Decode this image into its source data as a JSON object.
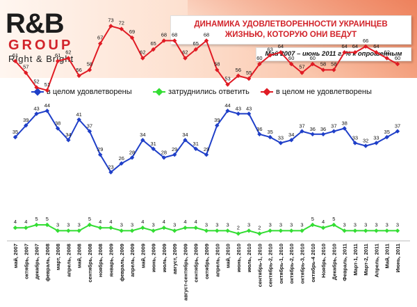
{
  "header": {
    "logo_main": "R&B",
    "logo_group": "GROUP",
    "logo_tagline": "Right & Bright",
    "title_line1": "ДИНАМИКА УДОВЛЕТВОРЕННОСТИ УКРАИНЦЕВ",
    "title_line2": "ЖИЗНЬЮ, КОТОРУЮ ОНИ ВЕДУТ",
    "subtitle": "Май 2007 – июнь 2011 г. % к опрошенным"
  },
  "colors": {
    "satisfied": "#1f3fc8",
    "undecided": "#33dd33",
    "unsatisfied": "#e01b24",
    "accent": "#d2232a"
  },
  "chart_data": {
    "type": "line",
    "title": "ДИНАМИКА УДОВЛЕТВОРЕННОСТИ УКРАИНЦЕВ ЖИЗНЬЮ, КОТОРУЮ ОНИ ВЕДУТ",
    "subtitle": "Май 2007 – июнь 2011 г. % к опрошенным",
    "legend_position": "top",
    "grid": false,
    "categories": [
      "май, 2007",
      "октябрь, 2007",
      "декабрь, 2007",
      "февраль, 2008",
      "март, 2008",
      "апрель, 2008",
      "май, 2008",
      "сентябрь, 2008",
      "ноябрь, 2008",
      "январь, 2009",
      "февраль, 2009",
      "апрель, 2009",
      "май, 2009",
      "июнь, 2009",
      "июль, 2009",
      "август, 2009",
      "август-сентябрь, 2009",
      "сентябрь, 2009",
      "октябрь, 2009",
      "апрель, 2010",
      "май, 2010",
      "июнь, 2010",
      "июль, 2010",
      "сентябрь-1, 2010",
      "сентябрь-2, 2010",
      "октябрь-1, 2010",
      "октябрь-2, 2010",
      "октябрь-3, 2010",
      "октябрь-4 2010",
      "Ноябрь, 2010",
      "Декабрь, 2010",
      "Февраль, 2011",
      "Март-1, 2011",
      "Март-2, 2011",
      "Апрель, 2011",
      "Май, 2011",
      "Июнь, 2011"
    ],
    "series": [
      {
        "name": "в целом удовлетворены",
        "color": "#1f3fc8",
        "values": [
          35,
          39,
          43,
          44,
          38,
          34,
          41,
          37,
          29,
          23,
          26,
          28,
          34,
          31,
          28,
          29,
          34,
          31,
          29,
          39,
          44,
          43,
          43,
          36,
          35,
          33,
          34,
          37,
          36,
          36,
          37,
          38,
          33,
          32,
          33,
          35,
          37
        ]
      },
      {
        "name": "затруднились ответить",
        "color": "#33dd33",
        "values": [
          4,
          4,
          5,
          5,
          3,
          3,
          3,
          5,
          4,
          4,
          3,
          3,
          4,
          3,
          4,
          3,
          4,
          4,
          3,
          3,
          3,
          2,
          3,
          2,
          3,
          3,
          3,
          3,
          5,
          4,
          5,
          3,
          3,
          3,
          3,
          3,
          3
        ]
      },
      {
        "name": "в целом не удовлетворены",
        "color": "#e01b24",
        "values": [
          61,
          57,
          52,
          51,
          61,
          62,
          56,
          58,
          67,
          73,
          72,
          69,
          62,
          65,
          68,
          68,
          62,
          65,
          68,
          58,
          53,
          56,
          55,
          60,
          63,
          64,
          60,
          57,
          60,
          58,
          58,
          64,
          64,
          66,
          64,
          62,
          60
        ]
      }
    ]
  }
}
